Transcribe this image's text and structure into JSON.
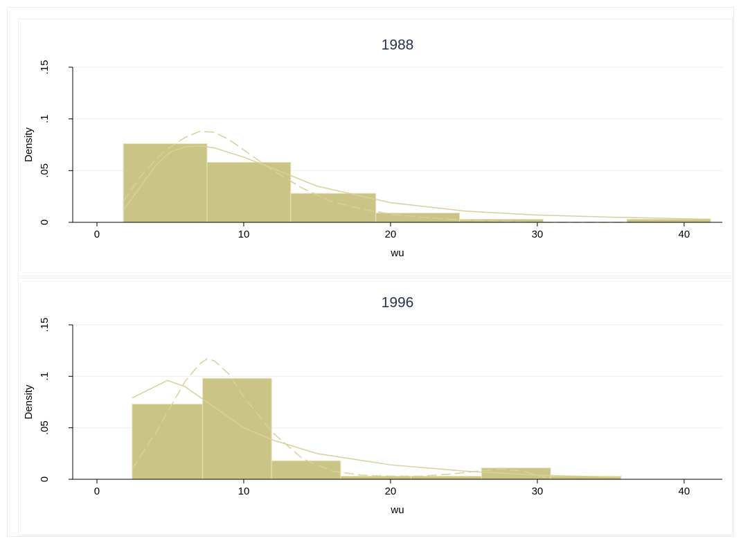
{
  "chart_data": [
    {
      "type": "histogram",
      "title": "1988",
      "xlabel": "wu",
      "ylabel": "Density",
      "bins": [
        1.8,
        7.5,
        13.2,
        19.0,
        24.7,
        30.4,
        36.1,
        41.8
      ],
      "values": [
        0.076,
        0.058,
        0.028,
        0.009,
        0.003,
        0,
        0.003
      ],
      "color": "#cbc487",
      "edgecolor": "#e8e3bb",
      "overlays": [
        {
          "color": "#d8d19a",
          "dash": false,
          "x": [
            1.8,
            3,
            4,
            5,
            6,
            7,
            8,
            10,
            12,
            15,
            20,
            25,
            30,
            35,
            41.8
          ],
          "values": [
            0.012,
            0.035,
            0.055,
            0.068,
            0.073,
            0.074,
            0.072,
            0.063,
            0.052,
            0.035,
            0.019,
            0.011,
            0.007,
            0.005,
            0.003
          ]
        },
        {
          "color": "#d8d19a",
          "dash": true,
          "x": [
            1.8,
            3,
            4.5,
            6,
            7,
            8,
            9,
            10,
            12,
            14,
            16,
            18,
            20,
            22,
            25,
            30,
            41.8
          ],
          "values": [
            0.02,
            0.045,
            0.068,
            0.082,
            0.088,
            0.087,
            0.08,
            0.07,
            0.05,
            0.033,
            0.02,
            0.013,
            0.008,
            0.005,
            0.002,
            0,
            0
          ]
        }
      ],
      "xlim": [
        -1.65,
        42.6
      ],
      "xticks": [
        0,
        10,
        20,
        30,
        40
      ],
      "ylim": [
        0,
        0.15
      ],
      "yticks": [
        0,
        {
          "value": 0.05,
          "label": ".05"
        },
        {
          "value": 0.1,
          "label": ".1"
        },
        {
          "value": 0.15,
          "label": ".15"
        }
      ],
      "grid": true
    },
    {
      "type": "histogram",
      "title": "1996",
      "xlabel": "wu",
      "ylabel": "Density",
      "bins": [
        2.4,
        7.2,
        11.9,
        16.6,
        21.4,
        26.2,
        30.9,
        35.7
      ],
      "values": [
        0.073,
        0.098,
        0.018,
        0.003,
        0.003,
        0.011,
        0.003
      ],
      "color": "#cbc487",
      "edgecolor": "#e8e3bb",
      "overlays": [
        {
          "color": "#d8d19a",
          "dash": false,
          "x": [
            2.4,
            4.8,
            6,
            8,
            10,
            12,
            15,
            20,
            25,
            30,
            35.7
          ],
          "values": [
            0.079,
            0.096,
            0.09,
            0.07,
            0.05,
            0.038,
            0.025,
            0.014,
            0.008,
            0.004,
            0.002
          ]
        },
        {
          "color": "#d8d19a",
          "dash": true,
          "x": [
            2.4,
            4,
            5,
            6,
            7,
            7.5,
            8,
            9,
            10,
            12,
            14,
            16,
            18,
            20,
            22,
            24,
            26,
            27.5,
            29,
            30.5,
            31
          ],
          "values": [
            0.01,
            0.045,
            0.07,
            0.095,
            0.112,
            0.117,
            0.115,
            0.102,
            0.08,
            0.045,
            0.02,
            0.008,
            0.004,
            0.003,
            0.003,
            0.005,
            0.008,
            0.01,
            0.008,
            0.002,
            0
          ]
        }
      ],
      "xlim": [
        -1.65,
        42.6
      ],
      "xticks": [
        0,
        10,
        20,
        30,
        40
      ],
      "ylim": [
        0,
        0.15
      ],
      "yticks": [
        0,
        {
          "value": 0.05,
          "label": ".05"
        },
        {
          "value": 0.1,
          "label": ".1"
        },
        {
          "value": 0.15,
          "label": ".15"
        }
      ],
      "grid": true
    }
  ]
}
